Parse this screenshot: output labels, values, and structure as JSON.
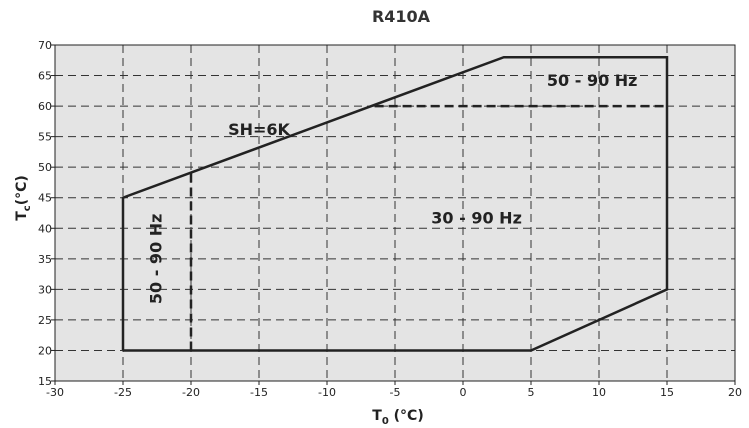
{
  "chart_data": {
    "type": "line",
    "title": "R410A",
    "xlabel": {
      "main": "T",
      "sub": "0",
      "unit": " (°C)"
    },
    "ylabel": {
      "main": "T",
      "sub": "c",
      "unit": "(°C)"
    },
    "xlim": [
      -30,
      20
    ],
    "ylim": [
      15,
      70
    ],
    "x_ticks": [
      -30,
      -25,
      -20,
      -15,
      -10,
      -5,
      0,
      5,
      10,
      15,
      20
    ],
    "y_ticks": [
      15,
      20,
      25,
      30,
      35,
      40,
      45,
      50,
      55,
      60,
      65,
      70
    ],
    "grid": true,
    "series": [
      {
        "style": "solid",
        "points": [
          [
            -25,
            20
          ],
          [
            5,
            20
          ],
          [
            15,
            30
          ],
          [
            15,
            68
          ],
          [
            3,
            68
          ],
          [
            -25,
            45
          ],
          [
            -25,
            20
          ]
        ]
      },
      {
        "style": "dashed",
        "points": [
          [
            -20,
            20
          ],
          [
            -20,
            49.5
          ]
        ]
      },
      {
        "style": "dashed",
        "points": [
          [
            -6.5,
            60
          ],
          [
            15,
            60
          ]
        ]
      }
    ],
    "annotations": [
      {
        "text": "SH=6K",
        "x": -15,
        "y": 56,
        "rotate": 0
      },
      {
        "text": "30 - 90 Hz",
        "x": 1,
        "y": 41.5,
        "rotate": 0
      },
      {
        "text": "50 - 90 Hz",
        "x": 9.5,
        "y": 64,
        "rotate": 0
      },
      {
        "text": "50 - 90 Hz",
        "x": -22.5,
        "y": 35,
        "rotate": -90
      }
    ],
    "colors": {
      "background": "#e4e4e4",
      "line": "#222222",
      "grid": "#333333"
    }
  }
}
